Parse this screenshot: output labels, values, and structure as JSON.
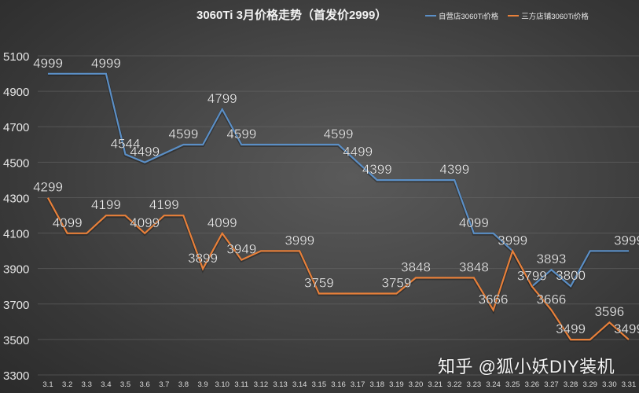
{
  "title": "3060Ti 3月价格走势（首发价2999）",
  "watermark": "知乎 @狐小妖DIY装机",
  "colors": {
    "self_store": "#5b8fc6",
    "third_party": "#e8803a",
    "grid": "#6a6a6a",
    "text": "#f0f0f0"
  },
  "legend": [
    {
      "label": "自营店3060Ti价格",
      "color": "#5b8fc6"
    },
    {
      "label": "三方店铺3060Ti价格",
      "color": "#e8803a"
    }
  ],
  "chart_data": {
    "type": "line",
    "title": "3060Ti 3月价格走势（首发价2999）",
    "xlabel": "",
    "ylabel": "",
    "ylim": [
      3300,
      5100
    ],
    "yticks": [
      3300,
      3500,
      3700,
      3900,
      4100,
      4300,
      4500,
      4700,
      4900,
      5100
    ],
    "grid": true,
    "legend_position": "top-right",
    "categories": [
      "3.1",
      "3.2",
      "3.3",
      "3.4",
      "3.5",
      "3.6",
      "3.7",
      "3.8",
      "3.9",
      "3.10",
      "3.11",
      "3.12",
      "3.13",
      "3.14",
      "3.15",
      "3.16",
      "3.17",
      "3.18",
      "3.19",
      "3.20",
      "3.21",
      "3.22",
      "3.23",
      "3.24",
      "3.25",
      "3.26",
      "3.27",
      "3.28",
      "3.29",
      "3.30",
      "3.31"
    ],
    "series": [
      {
        "name": "自营店3060Ti价格",
        "color": "#5b8fc6",
        "values": [
          4999,
          4999,
          4999,
          4999,
          4544,
          4499,
          4549,
          4599,
          4599,
          4799,
          4599,
          4599,
          4599,
          4599,
          4599,
          4599,
          4499,
          4399,
          4399,
          4399,
          4399,
          4399,
          4099,
          4099,
          3999,
          3799,
          3893,
          3800,
          3999,
          3999,
          3999
        ],
        "labeled_indices": [
          0,
          3,
          4,
          5,
          7,
          9,
          10,
          15,
          16,
          17,
          21,
          22,
          24,
          25,
          26,
          27,
          30
        ]
      },
      {
        "name": "三方店铺3060Ti价格",
        "color": "#e8803a",
        "values": [
          4299,
          4099,
          4099,
          4199,
          4199,
          4099,
          4199,
          4199,
          3899,
          4099,
          3949,
          3999,
          3999,
          3999,
          3759,
          3759,
          3759,
          3759,
          3759,
          3848,
          3848,
          3848,
          3848,
          3666,
          3999,
          3799,
          3666,
          3499,
          3499,
          3596,
          3499
        ],
        "labeled_indices": [
          0,
          1,
          3,
          5,
          6,
          8,
          9,
          10,
          13,
          14,
          18,
          19,
          22,
          23,
          26,
          27,
          29,
          30
        ]
      }
    ]
  }
}
